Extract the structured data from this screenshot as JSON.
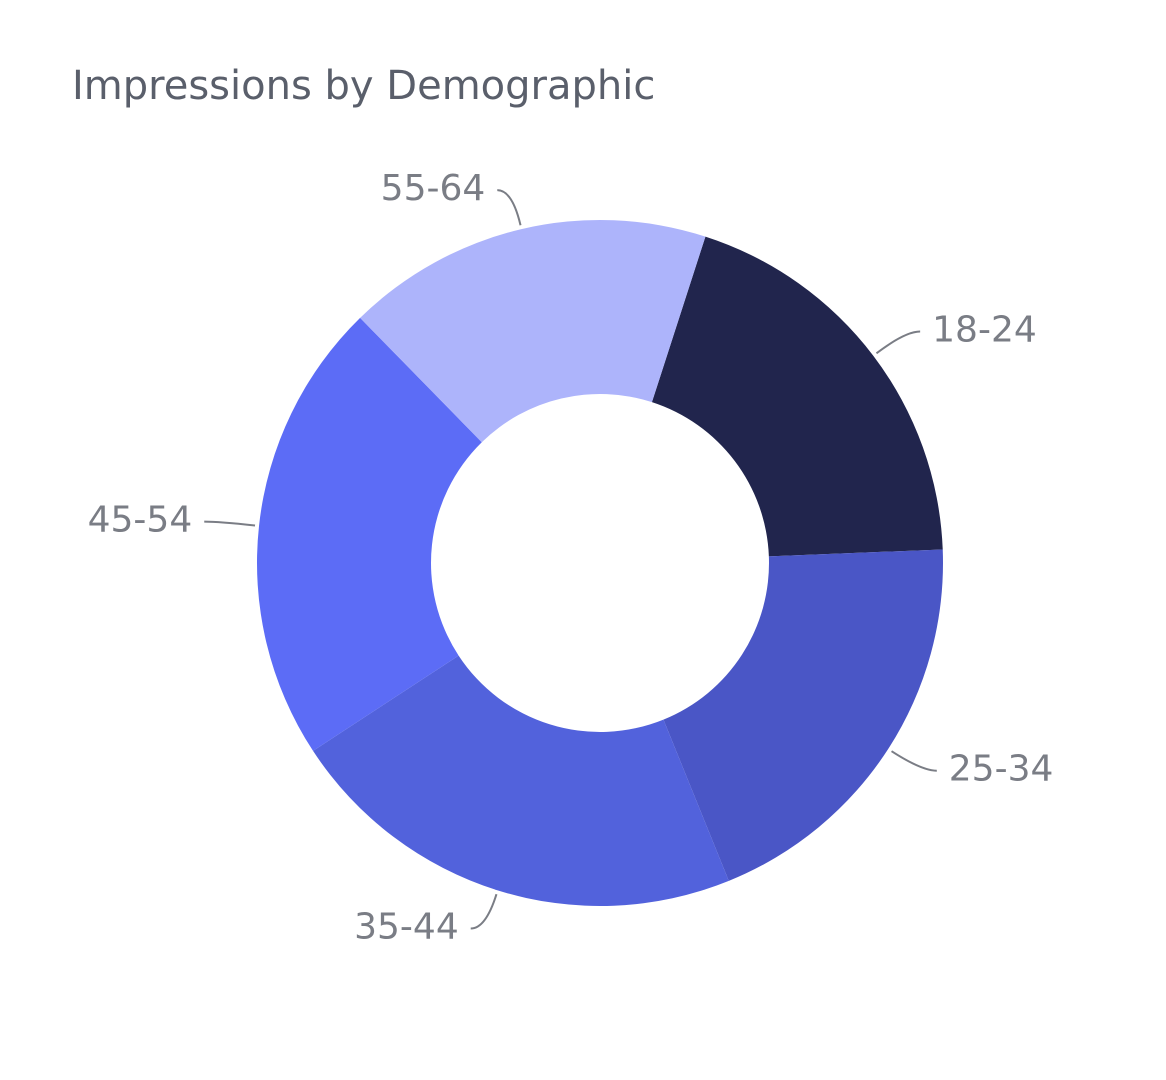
{
  "chart_data": {
    "type": "pie",
    "title": "Impressions by Demographic",
    "categories": [
      "18-24",
      "25-34",
      "35-44",
      "45-54",
      "55-64"
    ],
    "values": [
      19.4,
      19.5,
      21.9,
      21.9,
      17.3
    ],
    "colors": [
      "#21254d",
      "#4a56c6",
      "#5262dc",
      "#5c6cf6",
      "#adb4fb"
    ]
  }
}
